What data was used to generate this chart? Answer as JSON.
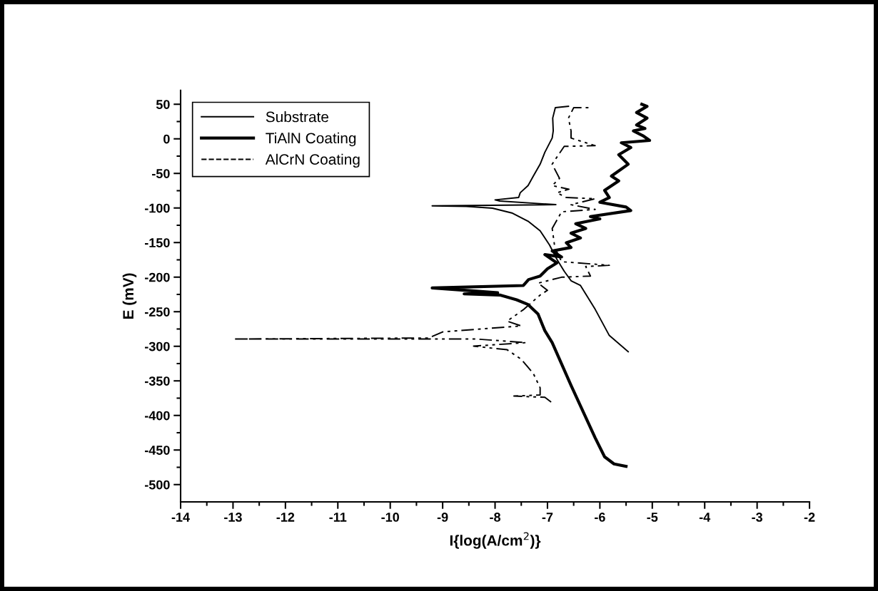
{
  "chart_data": {
    "type": "line",
    "xlabel": "I{log(A/cm$^{2}$)}",
    "ylabel": "E (mV)",
    "xlim": [
      -14,
      -2
    ],
    "xticks": [
      -14,
      -13,
      -12,
      -11,
      -10,
      -9,
      -8,
      -7,
      -6,
      -5,
      -4,
      -3,
      -2
    ],
    "ylim": [
      -525,
      70
    ],
    "yticks": [
      -500,
      -450,
      -400,
      -350,
      -300,
      -250,
      -200,
      -150,
      -100,
      -50,
      0,
      50
    ],
    "grid": false,
    "legend": "top left",
    "marker": "none",
    "series": [
      {
        "name": "Substrate",
        "color": "#000000",
        "line_style": "solid",
        "x": [
          -5.46,
          -5.82,
          -6.09,
          -6.37,
          -6.55,
          -6.68,
          -6.82,
          -6.96,
          -7.14,
          -7.37,
          -7.68,
          -8.05,
          -8.55,
          -9.2,
          -6.84,
          -7.91,
          -8.0,
          -7.55,
          -7.52,
          -7.37,
          -7.27,
          -7.14,
          -7.05,
          -6.91,
          -6.89,
          -6.9,
          -6.85,
          -6.6
        ],
        "values": [
          -307.8,
          -284.4,
          -246.5,
          -212.1,
          -205.2,
          -191.5,
          -174.3,
          -153.6,
          -133,
          -119.2,
          -107.2,
          -100.3,
          -97.6,
          -96.9,
          -95.2,
          -90,
          -88.3,
          -84.8,
          -78,
          -67.6,
          -53.9,
          -36.7,
          -19.5,
          1.2,
          11.5,
          30,
          45,
          47
        ]
      },
      {
        "name": "TiAlN Coating",
        "color": "#000000",
        "line_style": "solid",
        "x": [
          -5.5,
          -5.73,
          -5.91,
          -6.09,
          -6.55,
          -6.91,
          -7.05,
          -7.18,
          -7.37,
          -7.59,
          -7.91,
          -8.59,
          -7.95,
          -8.59,
          -9.2,
          -7.46,
          -7.36,
          -7.14,
          -7.0,
          -6.82,
          -7.05,
          -6.73,
          -6.91,
          -6.55,
          -6.64,
          -6.37,
          -6.55,
          -6.27,
          -6.46,
          -6.0,
          -6.18,
          -5.41,
          -5.5,
          -6.0,
          -5.82,
          -5.91,
          -5.64,
          -5.78,
          -5.46,
          -5.64,
          -5.41,
          -5.59,
          -5.05,
          -5.18,
          -5.36,
          -5.14,
          -5.3,
          -5.1,
          -5.3,
          -5.1,
          -5.2
        ],
        "values": [
          -473.6,
          -470.1,
          -459.8,
          -432.3,
          -356.6,
          -294.7,
          -277.5,
          -253.4,
          -239.6,
          -232.8,
          -225.9,
          -224.2,
          -222.4,
          -219,
          -215.6,
          -212.1,
          -203.5,
          -198.4,
          -188,
          -179.4,
          -167.4,
          -170.8,
          -162.2,
          -157.1,
          -150.2,
          -143.3,
          -136.4,
          -129.6,
          -122.7,
          -115.8,
          -112.4,
          -103.8,
          -98.6,
          -91.7,
          -84.9,
          -74.5,
          -60.8,
          -53.9,
          -36.7,
          -23,
          -12.6,
          -5.7,
          -2.3,
          4.6,
          11.5,
          15,
          20,
          30,
          38,
          47,
          50
        ]
      },
      {
        "name": "AlCrN Coating",
        "color": "#000000",
        "line_style": "dashdotdot",
        "x": [
          -6.93,
          -7.05,
          -7.64,
          -7.14,
          -7.14,
          -7.27,
          -7.5,
          -7.77,
          -8.41,
          -7.41,
          -8.36,
          -13.0,
          -9.27,
          -9.0,
          -7.5,
          -7.77,
          -7.45,
          -7.14,
          -7.0,
          -7.18,
          -6.73,
          -6.18,
          -6.27,
          -5.82,
          -6.73,
          -6.86,
          -6.91,
          -6.73,
          -6.09,
          -6.55,
          -6.09,
          -6.64,
          -6.82,
          -6.59,
          -6.91,
          -6.77,
          -6.91,
          -6.82,
          -6.68,
          -6.09,
          -6.55,
          -6.55,
          -6.6,
          -6.5,
          -6.2
        ],
        "values": [
          -380.7,
          -373.8,
          -372,
          -370.4,
          -360,
          -339.4,
          -318.8,
          -305,
          -299.8,
          -294.7,
          -289.5,
          -289.5,
          -288,
          -279.2,
          -270.6,
          -263.7,
          -246.5,
          -225.9,
          -219,
          -208.7,
          -200.1,
          -198.4,
          -184.6,
          -182.9,
          -177.7,
          -157.1,
          -129.6,
          -105.5,
          -102.1,
          -95.2,
          -86.6,
          -84.9,
          -78,
          -72.8,
          -67.6,
          -57.3,
          -36.7,
          -26.4,
          -10.9,
          -9.9,
          1.1,
          11.5,
          30,
          45,
          45
        ]
      }
    ]
  }
}
